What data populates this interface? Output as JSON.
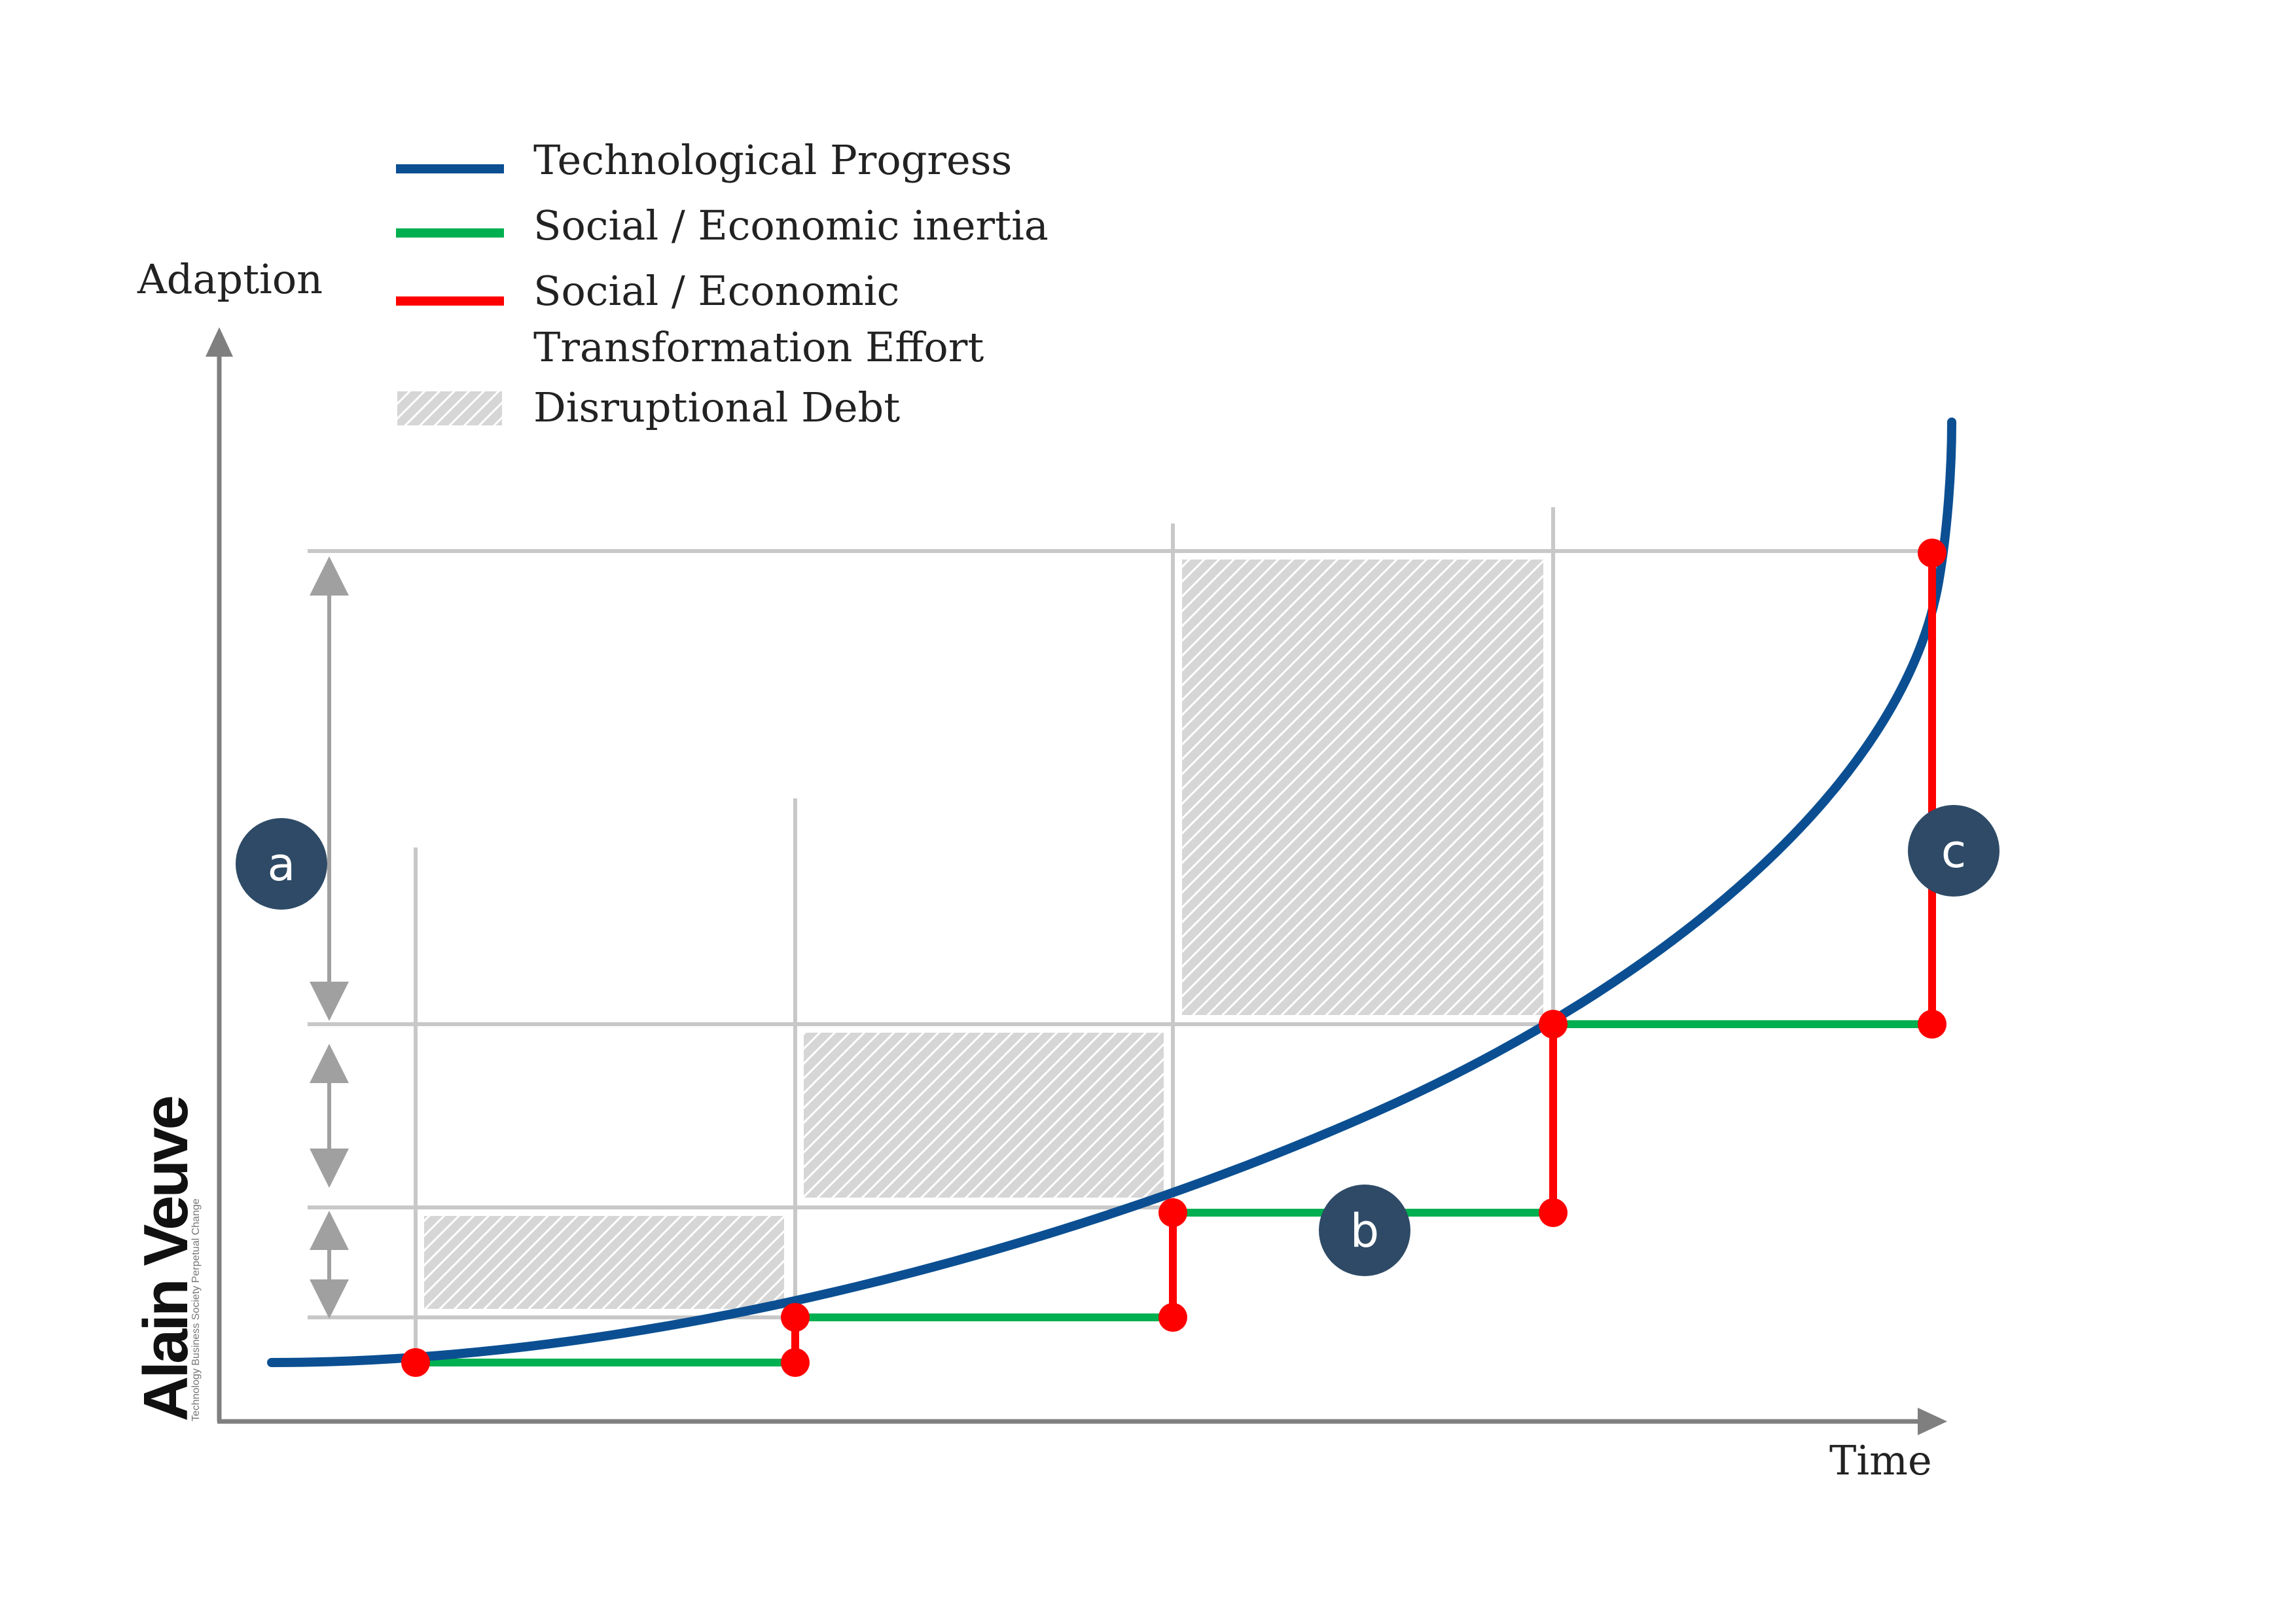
{
  "legend": [
    {
      "label": "Technological Progress",
      "color": "#0b4f92",
      "kind": "line"
    },
    {
      "label": "Social / Economic inertia",
      "color": "#00b050",
      "kind": "line"
    },
    {
      "label_line1": "Social / Economic",
      "label_line2": "Transformation Effort",
      "color": "#ff0000",
      "kind": "line"
    },
    {
      "label": "Disruptional Debt",
      "color": "#bdbdbd",
      "kind": "hatch"
    }
  ],
  "axes": {
    "y_label": "Adaption",
    "x_label": "Time"
  },
  "badges": {
    "a": "a",
    "b": "b",
    "c": "c"
  },
  "logo": {
    "name": "Alain Veuve",
    "tagline": "Technology Business Society Perpetual Change"
  },
  "colors": {
    "progress": "#0b4f92",
    "inertia": "#00b050",
    "effort": "#ff0000",
    "grid": "#c8c8c8",
    "axis": "#7f7f7f",
    "badge": "#2e4a66"
  }
}
